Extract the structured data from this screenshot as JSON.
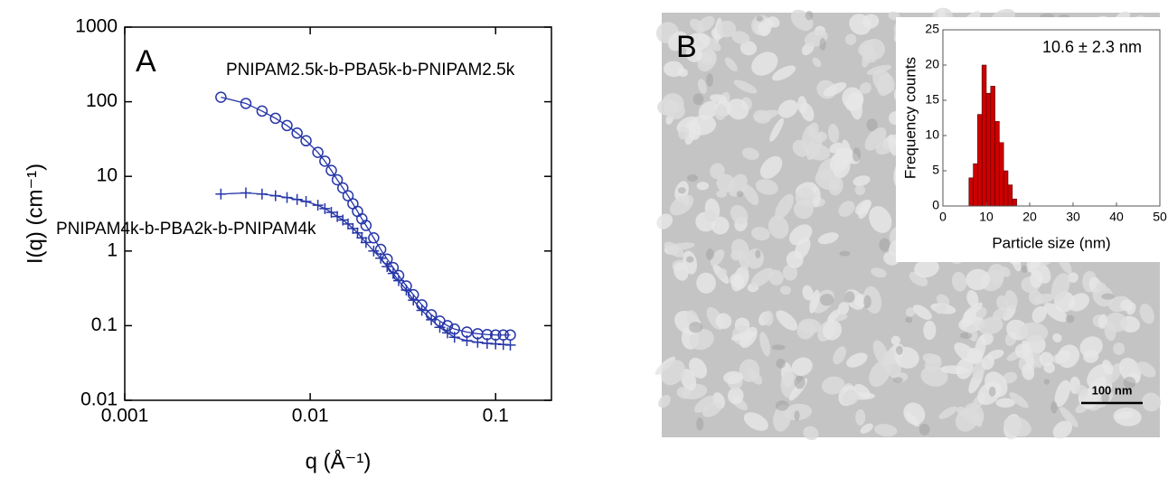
{
  "chart_data": [
    {
      "type": "scatter",
      "panel_label": "A",
      "x_label": "q (Å⁻¹)",
      "y_label": "I(q) (cm⁻¹)",
      "xscale": "log",
      "yscale": "log",
      "xlim": [
        0.001,
        0.2
      ],
      "ylim": [
        0.01,
        1000
      ],
      "xticks": [
        0.001,
        0.01,
        0.1
      ],
      "yticks": [
        0.01,
        0.1,
        1,
        10,
        100,
        1000
      ],
      "x": [
        0.0033,
        0.0045,
        0.0055,
        0.0065,
        0.0075,
        0.0085,
        0.0095,
        0.011,
        0.012,
        0.013,
        0.014,
        0.015,
        0.016,
        0.017,
        0.018,
        0.019,
        0.02,
        0.022,
        0.024,
        0.026,
        0.028,
        0.03,
        0.033,
        0.036,
        0.04,
        0.045,
        0.05,
        0.055,
        0.06,
        0.07,
        0.08,
        0.09,
        0.1,
        0.11,
        0.12
      ],
      "series": [
        {
          "name": "PNIPAM2.5k-b-PBA5k-b-PNIPAM2.5k",
          "color": "#2636a8",
          "marker": "o",
          "values": [
            115,
            95,
            75,
            60,
            48,
            38,
            30,
            21,
            16,
            12,
            9,
            7,
            5.5,
            4.3,
            3.4,
            2.7,
            2.2,
            1.5,
            1.05,
            0.78,
            0.6,
            0.47,
            0.34,
            0.26,
            0.19,
            0.14,
            0.115,
            0.1,
            0.09,
            0.082,
            0.078,
            0.076,
            0.075,
            0.075,
            0.075
          ]
        },
        {
          "name": "PNIPAM4k-b-PBA2k-b-PNIPAM4k",
          "color": "#2636a8",
          "marker": "+",
          "values": [
            5.8,
            6,
            5.8,
            5.5,
            5.2,
            4.9,
            4.6,
            4.1,
            3.7,
            3.3,
            2.9,
            2.6,
            2.3,
            2.0,
            1.75,
            1.5,
            1.3,
            1.0,
            0.8,
            0.62,
            0.5,
            0.4,
            0.3,
            0.22,
            0.16,
            0.12,
            0.095,
            0.08,
            0.07,
            0.063,
            0.06,
            0.058,
            0.057,
            0.056,
            0.055
          ]
        }
      ]
    },
    {
      "type": "histogram",
      "panel_label": "B",
      "annotation": "10.6 ± 2.3 nm",
      "scale_bar": "100 nm",
      "x_label": "Particle size (nm)",
      "y_label": "Frequency counts",
      "xlim": [
        0,
        50
      ],
      "ylim": [
        0,
        25
      ],
      "xticks": [
        0,
        10,
        20,
        30,
        40,
        50
      ],
      "yticks": [
        0,
        5,
        10,
        15,
        20,
        25
      ],
      "bins": [
        6,
        7,
        8,
        9,
        10,
        11,
        12,
        13,
        14,
        15,
        16,
        17
      ],
      "values": [
        4,
        6,
        13,
        20,
        16,
        17,
        12,
        9,
        5,
        3,
        1
      ],
      "color": "#cc0000"
    }
  ]
}
